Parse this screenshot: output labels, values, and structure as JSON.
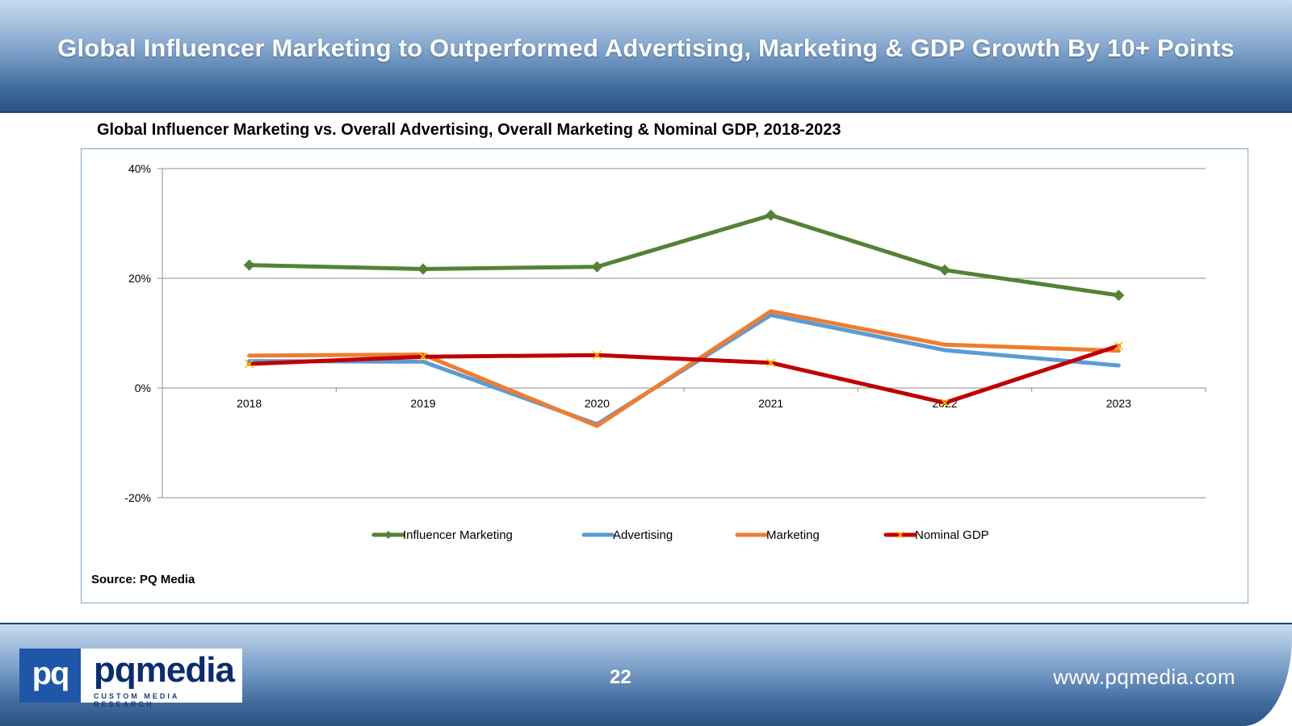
{
  "header": {
    "title": "Global Influencer Marketing to Outperformed Advertising, Marketing & GDP Growth By 10+ Points"
  },
  "chart_title": "Global Influencer Marketing vs. Overall Advertising, Overall Marketing & Nominal GDP, 2018-2023",
  "source": "Source: PQ Media",
  "footer": {
    "page_number": "22",
    "website": "www.pqmedia.com",
    "logo_box": "pq",
    "logo_word": "pqmedia",
    "logo_tagline": "CUSTOM MEDIA RESEARCH"
  },
  "colors": {
    "influencer": "#548235",
    "advertising": "#5b9bd5",
    "marketing": "#ed7d31",
    "gdp": "#c00000",
    "gdp_marker": "#ffc000",
    "grid": "#8c8c8c"
  },
  "chart_data": {
    "type": "line",
    "title": "Global Influencer Marketing vs. Overall Advertising, Overall Marketing & Nominal GDP, 2018-2023",
    "categories": [
      "2018",
      "2019",
      "2020",
      "2021",
      "2022",
      "2023"
    ],
    "ylim": [
      -20,
      40
    ],
    "yticks": [
      -20,
      0,
      20,
      40
    ],
    "ytick_labels": [
      "-20%",
      "0%",
      "20%",
      "40%"
    ],
    "grid": true,
    "legend_position": "bottom",
    "series": [
      {
        "name": "Influencer Marketing",
        "marker": "diamond",
        "values": [
          22.4,
          21.7,
          22.1,
          31.5,
          21.5,
          16.9
        ]
      },
      {
        "name": "Advertising",
        "marker": "none",
        "values": [
          4.9,
          4.8,
          -6.6,
          13.3,
          6.9,
          4.1
        ]
      },
      {
        "name": "Marketing",
        "marker": "none",
        "values": [
          5.9,
          6.1,
          -6.9,
          14.0,
          7.9,
          6.8
        ]
      },
      {
        "name": "Nominal GDP",
        "marker": "x",
        "values": [
          4.4,
          5.7,
          6.0,
          4.6,
          -2.7,
          7.7
        ]
      }
    ]
  }
}
